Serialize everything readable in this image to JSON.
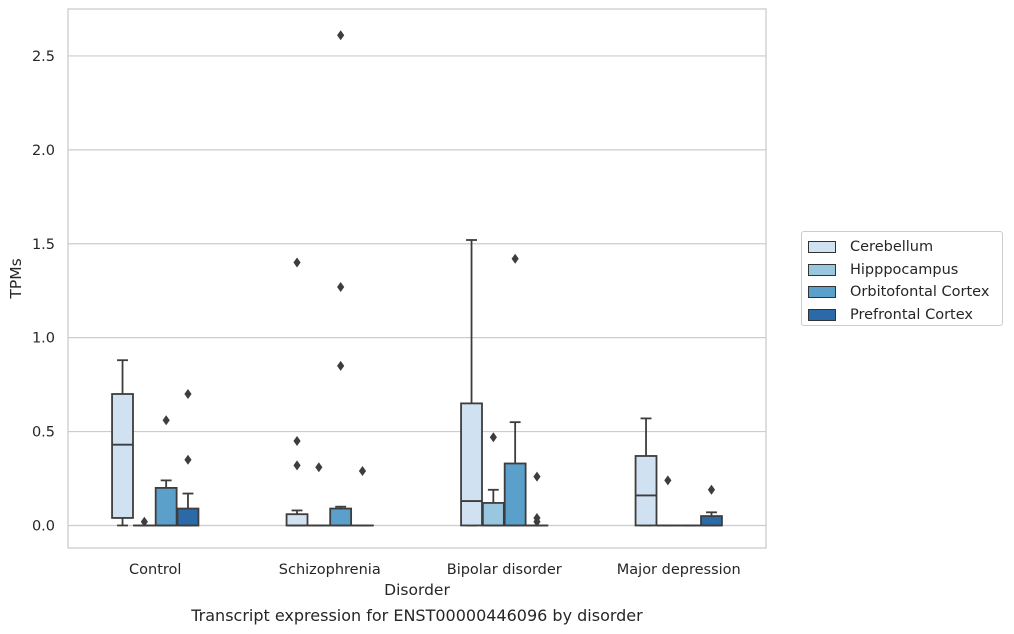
{
  "caption": "Transcript expression for ENST00000446096 by disorder",
  "chart_data": {
    "type": "box",
    "xlabel": "Disorder",
    "ylabel": "TPMs",
    "ylim": [
      -0.12,
      2.75
    ],
    "yticks": [
      0.0,
      0.5,
      1.0,
      1.5,
      2.0,
      2.5
    ],
    "ytick_labels": [
      "0.0",
      "0.5",
      "1.0",
      "1.5",
      "2.0",
      "2.5"
    ],
    "grid": "horizontal",
    "legend_position": "right, outside",
    "categories": [
      "Control",
      "Schizophrenia",
      "Bipolar disorder",
      "Major depression"
    ],
    "series": [
      {
        "name": "Cerebellum",
        "color": "#d0e1f1",
        "boxes": [
          {
            "whisker_low": 0.0,
            "q1": 0.04,
            "median": 0.43,
            "q3": 0.7,
            "whisker_high": 0.88,
            "outliers": []
          },
          {
            "whisker_low": 0.0,
            "q1": 0.0,
            "median": 0.0,
            "q3": 0.06,
            "whisker_high": 0.08,
            "outliers": [
              1.4,
              0.45,
              0.32
            ]
          },
          {
            "whisker_low": 0.0,
            "q1": 0.0,
            "median": 0.13,
            "q3": 0.65,
            "whisker_high": 1.52,
            "outliers": []
          },
          {
            "whisker_low": 0.0,
            "q1": 0.0,
            "median": 0.16,
            "q3": 0.37,
            "whisker_high": 0.57,
            "outliers": []
          }
        ]
      },
      {
        "name": "Hipppocampus",
        "color": "#9ac7e0",
        "boxes": [
          {
            "whisker_low": 0.0,
            "q1": 0.0,
            "median": 0.0,
            "q3": 0.0,
            "whisker_high": 0.0,
            "outliers": [
              0.02
            ]
          },
          {
            "whisker_low": 0.0,
            "q1": 0.0,
            "median": 0.0,
            "q3": 0.0,
            "whisker_high": 0.0,
            "outliers": [
              0.31
            ]
          },
          {
            "whisker_low": 0.0,
            "q1": 0.0,
            "median": 0.0,
            "q3": 0.12,
            "whisker_high": 0.19,
            "outliers": [
              0.47
            ]
          },
          {
            "whisker_low": 0.0,
            "q1": 0.0,
            "median": 0.0,
            "q3": 0.0,
            "whisker_high": 0.0,
            "outliers": [
              0.24
            ]
          }
        ]
      },
      {
        "name": "Orbitofontal Cortex",
        "color": "#5b9fcb",
        "boxes": [
          {
            "whisker_low": 0.0,
            "q1": 0.0,
            "median": 0.0,
            "q3": 0.2,
            "whisker_high": 0.24,
            "outliers": [
              0.56
            ]
          },
          {
            "whisker_low": 0.0,
            "q1": 0.0,
            "median": 0.0,
            "q3": 0.09,
            "whisker_high": 0.1,
            "outliers": [
              2.61,
              1.27,
              0.85
            ]
          },
          {
            "whisker_low": 0.0,
            "q1": 0.0,
            "median": 0.0,
            "q3": 0.33,
            "whisker_high": 0.55,
            "outliers": [
              1.42
            ]
          },
          {
            "whisker_low": 0.0,
            "q1": 0.0,
            "median": 0.0,
            "q3": 0.0,
            "whisker_high": 0.0,
            "outliers": []
          }
        ]
      },
      {
        "name": "Prefrontal Cortex",
        "color": "#2b6aa8",
        "boxes": [
          {
            "whisker_low": 0.0,
            "q1": 0.0,
            "median": 0.0,
            "q3": 0.09,
            "whisker_high": 0.17,
            "outliers": [
              0.7,
              0.35
            ]
          },
          {
            "whisker_low": 0.0,
            "q1": 0.0,
            "median": 0.0,
            "q3": 0.0,
            "whisker_high": 0.0,
            "outliers": [
              0.29
            ]
          },
          {
            "whisker_low": 0.0,
            "q1": 0.0,
            "median": 0.0,
            "q3": 0.0,
            "whisker_high": 0.0,
            "outliers": [
              0.26,
              0.04,
              0.02
            ]
          },
          {
            "whisker_low": 0.0,
            "q1": 0.0,
            "median": 0.0,
            "q3": 0.05,
            "whisker_high": 0.07,
            "outliers": [
              0.19
            ]
          }
        ]
      }
    ]
  }
}
